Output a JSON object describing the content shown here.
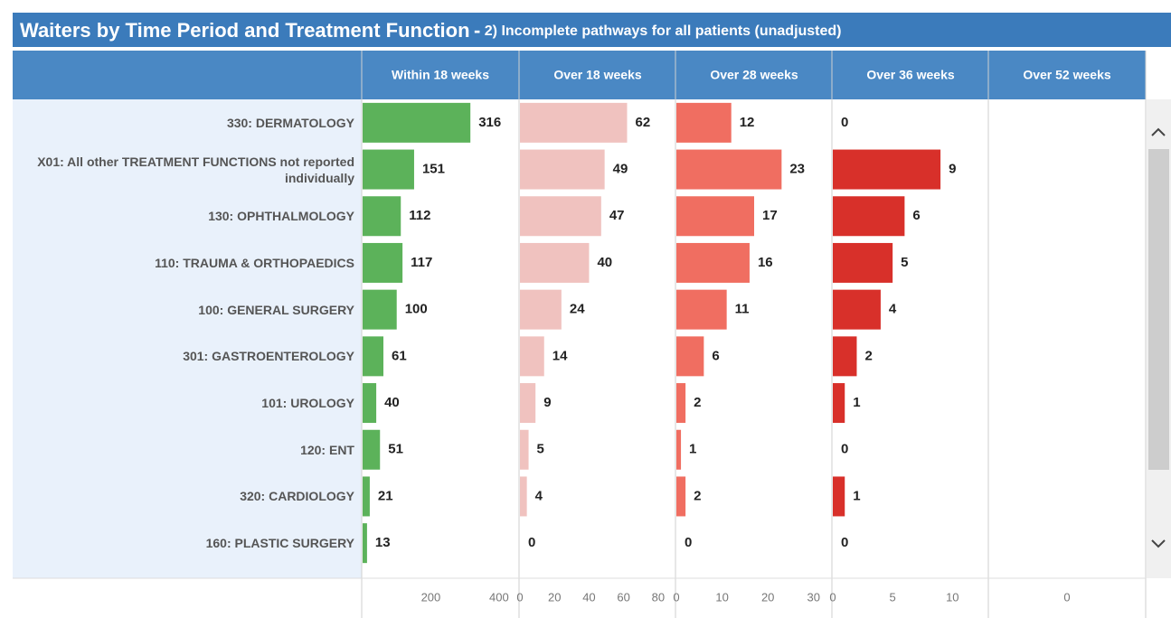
{
  "header": {
    "title": "Waiters by Time Period and Treatment Function",
    "separator": "-",
    "subtitle": "2) Incomplete pathways for all patients (unadjusted)"
  },
  "chart_data": {
    "type": "bar",
    "orientation": "horizontal",
    "categories": [
      "330: DERMATOLOGY",
      "X01: All other TREATMENT FUNCTIONS not reported individually",
      "130: OPHTHALMOLOGY",
      "110: TRAUMA & ORTHOPAEDICS",
      "100: GENERAL SURGERY",
      "301: GASTROENTEROLOGY",
      "101: UROLOGY",
      "120: ENT",
      "320: CARDIOLOGY",
      "160: PLASTIC SURGERY"
    ],
    "series": [
      {
        "name": "Within 18 weeks",
        "color": "#5cb25a",
        "values": [
          316,
          151,
          112,
          117,
          100,
          61,
          40,
          51,
          21,
          13
        ],
        "xlim": [
          0,
          456
        ],
        "xticks": [
          200,
          400
        ]
      },
      {
        "name": "Over 18 weeks",
        "color": "#f0c2bf",
        "values": [
          62,
          49,
          47,
          40,
          24,
          14,
          9,
          5,
          4,
          0
        ],
        "xlim": [
          0,
          90
        ],
        "xticks": [
          0,
          20,
          40,
          60,
          80
        ]
      },
      {
        "name": "Over 28 weeks",
        "color": "#f06e61",
        "values": [
          12,
          23,
          17,
          16,
          11,
          6,
          2,
          1,
          2,
          0
        ],
        "xlim": [
          0,
          34
        ],
        "xticks": [
          0,
          10,
          20,
          30
        ]
      },
      {
        "name": "Over 36 weeks",
        "color": "#d8302a",
        "values": [
          0,
          9,
          6,
          5,
          4,
          2,
          1,
          0,
          1,
          0
        ],
        "xlim": [
          0,
          13
        ],
        "xticks": [
          0,
          5,
          10
        ]
      },
      {
        "name": "Over 52 weeks",
        "color": "#a01e1a",
        "values": [
          null,
          null,
          null,
          null,
          null,
          null,
          null,
          null,
          null,
          null
        ],
        "xlim": [
          -1,
          1
        ],
        "xticks": [
          0
        ]
      }
    ]
  }
}
